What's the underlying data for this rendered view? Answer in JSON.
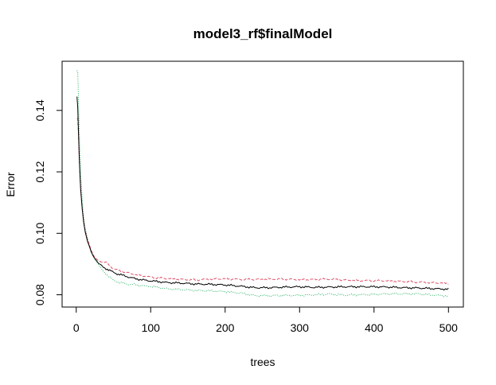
{
  "chart_data": {
    "type": "line",
    "title": "model3_rf$finalModel",
    "xlabel": "trees",
    "ylabel": "Error",
    "xlim": [
      1,
      500
    ],
    "ylim": [
      0.076,
      0.156
    ],
    "xticks": [
      0,
      100,
      200,
      300,
      400,
      500
    ],
    "yticks": [
      0.08,
      0.1,
      0.12,
      0.14
    ],
    "grid": false,
    "legend": "none",
    "series": [
      {
        "color": "#000000",
        "dash": "solid",
        "x": [
          1,
          2,
          3,
          4,
          5,
          6,
          8,
          10,
          12,
          15,
          18,
          20,
          23,
          25,
          28,
          30,
          35,
          40,
          45,
          50,
          55,
          60,
          70,
          80,
          90,
          100,
          110,
          120,
          140,
          160,
          180,
          200,
          220,
          240,
          260,
          280,
          300,
          320,
          340,
          360,
          380,
          400,
          420,
          440,
          460,
          480,
          500
        ],
        "values": [
          0.1445,
          0.141,
          0.133,
          0.125,
          0.119,
          0.114,
          0.108,
          0.1035,
          0.1005,
          0.0975,
          0.0955,
          0.094,
          0.0925,
          0.0918,
          0.0908,
          0.0902,
          0.0892,
          0.0885,
          0.0879,
          0.0873,
          0.0868,
          0.0865,
          0.0858,
          0.0852,
          0.0848,
          0.0845,
          0.0843,
          0.084,
          0.0838,
          0.0835,
          0.0834,
          0.0832,
          0.0828,
          0.0823,
          0.0823,
          0.0825,
          0.0826,
          0.0824,
          0.0825,
          0.0826,
          0.0826,
          0.0826,
          0.0825,
          0.0823,
          0.0822,
          0.082,
          0.0818
        ]
      },
      {
        "color": "#DF536B",
        "dash": "dashed",
        "x": [
          1,
          2,
          3,
          4,
          5,
          6,
          8,
          10,
          12,
          15,
          18,
          20,
          23,
          25,
          28,
          30,
          35,
          40,
          45,
          50,
          55,
          60,
          70,
          80,
          90,
          100,
          110,
          120,
          140,
          160,
          180,
          200,
          220,
          240,
          260,
          280,
          300,
          320,
          340,
          360,
          380,
          400,
          420,
          440,
          460,
          480,
          500
        ],
        "values": [
          0.1375,
          0.1372,
          0.132,
          0.125,
          0.119,
          0.114,
          0.108,
          0.104,
          0.101,
          0.098,
          0.096,
          0.0945,
          0.093,
          0.092,
          0.0915,
          0.091,
          0.0908,
          0.0904,
          0.0894,
          0.0885,
          0.088,
          0.0877,
          0.0871,
          0.0865,
          0.0862,
          0.0857,
          0.0855,
          0.0853,
          0.085,
          0.0848,
          0.0851,
          0.0852,
          0.085,
          0.085,
          0.0851,
          0.0851,
          0.0849,
          0.085,
          0.0851,
          0.0848,
          0.0846,
          0.0846,
          0.0845,
          0.0843,
          0.0841,
          0.0839,
          0.0837
        ]
      },
      {
        "color": "#28B463",
        "dash": "dotted",
        "x": [
          1,
          2,
          3,
          4,
          5,
          6,
          8,
          10,
          12,
          15,
          18,
          20,
          23,
          25,
          28,
          30,
          35,
          40,
          45,
          50,
          55,
          60,
          70,
          80,
          90,
          100,
          110,
          120,
          140,
          160,
          180,
          200,
          220,
          240,
          260,
          280,
          300,
          320,
          340,
          360,
          380,
          400,
          420,
          440,
          460,
          480,
          500
        ],
        "values": [
          0.153,
          0.1525,
          0.144,
          0.134,
          0.126,
          0.119,
          0.111,
          0.105,
          0.1015,
          0.0985,
          0.0958,
          0.094,
          0.0925,
          0.0915,
          0.0905,
          0.0898,
          0.0879,
          0.0868,
          0.0857,
          0.0847,
          0.0842,
          0.0839,
          0.0834,
          0.0833,
          0.0829,
          0.0827,
          0.0824,
          0.082,
          0.0817,
          0.0814,
          0.0813,
          0.081,
          0.0806,
          0.0797,
          0.0797,
          0.0798,
          0.0798,
          0.08,
          0.0802,
          0.0799,
          0.08,
          0.0801,
          0.0803,
          0.0803,
          0.0803,
          0.0799,
          0.0796
        ]
      }
    ]
  }
}
